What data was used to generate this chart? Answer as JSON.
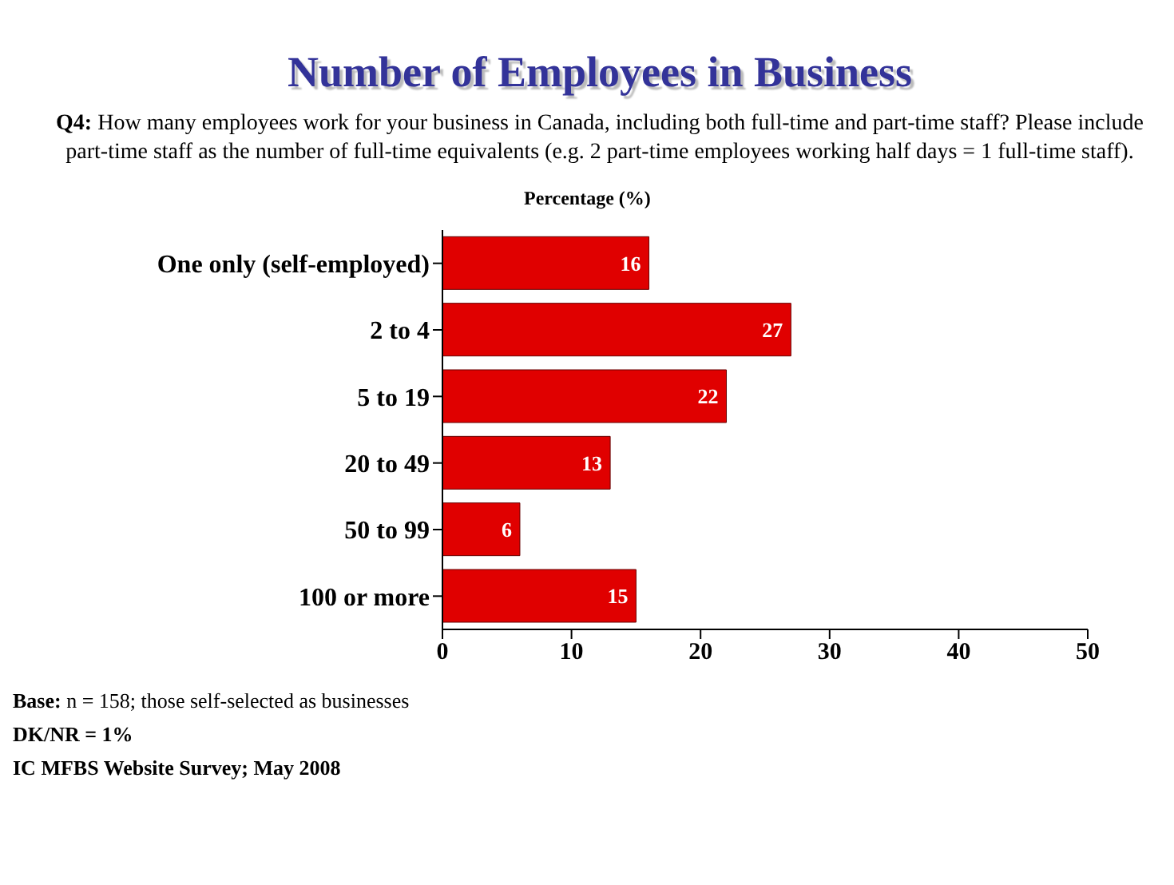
{
  "chart_data": {
    "type": "bar",
    "orientation": "horizontal",
    "title": "Number of Employees in Business",
    "subtitle": "Q4: How many employees work for your business in Canada, including both full-time and part-time staff? Please include part-time staff as the number of full-time equivalents (e.g. 2 part-time employees working half days = 1 full-time staff).",
    "xlabel": "Percentage (%)",
    "categories": [
      "One only (self-employed)",
      "2 to 4",
      "5 to 19",
      "20 to 49",
      "50 to 99",
      "100 or more"
    ],
    "values": [
      16,
      27,
      22,
      13,
      6,
      15
    ],
    "color": "#e00000",
    "xlim": [
      0,
      50
    ],
    "xticks": [
      0,
      10,
      20,
      30,
      40,
      50
    ],
    "grid": false,
    "legend": false,
    "data_labels": true,
    "annotations": [
      "Base: n = 158; those self-selected as businesses",
      "DK/NR = 1%",
      "IC MFBS Website Survey; May 2008"
    ]
  }
}
